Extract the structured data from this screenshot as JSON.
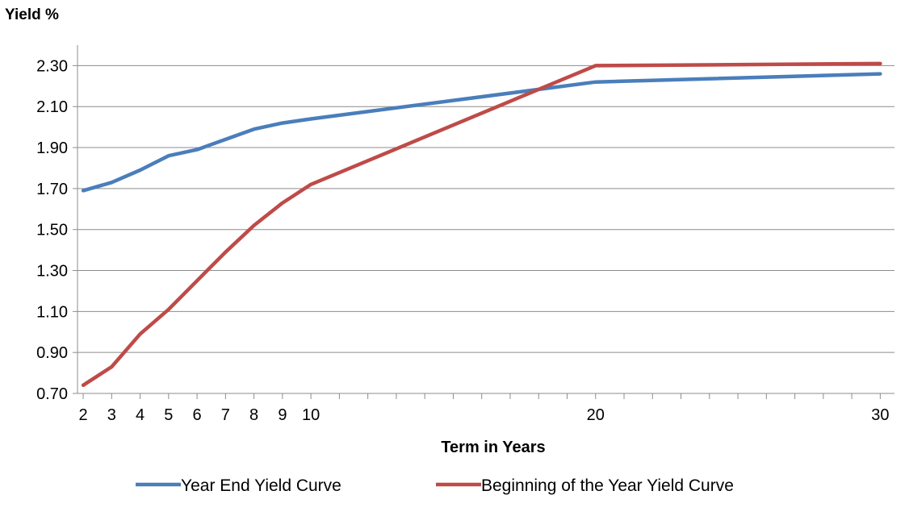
{
  "chart_data": {
    "type": "line",
    "title": "",
    "ylabel": "Yield %",
    "xlabel": "Term in Years",
    "ylim": [
      0.7,
      2.4
    ],
    "y_ticks": [
      "0.70",
      "0.90",
      "1.10",
      "1.30",
      "1.50",
      "1.70",
      "1.90",
      "2.10",
      "2.30"
    ],
    "xlim": [
      1.8,
      30.5
    ],
    "x_ticks": [
      "2",
      "3",
      "4",
      "5",
      "6",
      "7",
      "8",
      "9",
      "10",
      "20",
      "30"
    ],
    "grid": "horizontal",
    "legend_position": "bottom",
    "series": [
      {
        "name": "Year End Yield Curve",
        "color": "#4a7ebb",
        "x": [
          2,
          3,
          4,
          5,
          6,
          7,
          8,
          9,
          10,
          20,
          30
        ],
        "y": [
          1.69,
          1.73,
          1.79,
          1.86,
          1.89,
          1.94,
          1.99,
          2.02,
          2.04,
          2.22,
          2.26
        ]
      },
      {
        "name": "Beginning of the Year Yield Curve",
        "color": "#be4b48",
        "x": [
          2,
          3,
          4,
          5,
          6,
          7,
          8,
          9,
          10,
          20,
          30
        ],
        "y": [
          0.74,
          0.83,
          0.99,
          1.11,
          1.25,
          1.39,
          1.52,
          1.63,
          1.72,
          2.3,
          2.31
        ]
      }
    ]
  }
}
